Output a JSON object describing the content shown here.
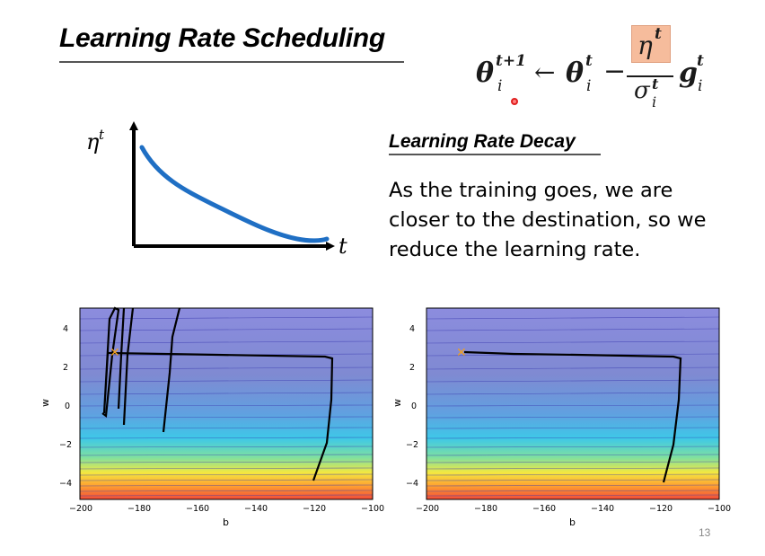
{
  "title": "Learning Rate Scheduling",
  "formula": {
    "theta": "θ",
    "arrow": "←",
    "minus": "−",
    "eta": "η",
    "sigma": "σ",
    "g": "g",
    "sup_t1": "t+1",
    "sup_t": "t",
    "sub_i": "i"
  },
  "decay_plot": {
    "y_label": "η",
    "y_label_sup": "t",
    "x_label": "t"
  },
  "subtitle": "Learning Rate Decay",
  "description_lines": [
    "As the training goes, we are",
    "closer to the destination, so we",
    "reduce the learning rate."
  ],
  "plots": [
    {
      "xlabel": "b",
      "ylabel": "w",
      "xticks": [
        "−200",
        "−180",
        "−160",
        "−140",
        "−120",
        "−100"
      ],
      "yticks": [
        "−4",
        "−2",
        "0",
        "2",
        "4"
      ]
    },
    {
      "xlabel": "b",
      "ylabel": "w",
      "xticks": [
        "−200",
        "−180",
        "−160",
        "−140",
        "−120",
        "−100"
      ],
      "yticks": [
        "−4",
        "−2",
        "0",
        "2",
        "4"
      ]
    }
  ],
  "page_number": "13",
  "colors": {
    "curve": "#1f6fc4",
    "eta_highlight": "#f6bc9c",
    "optimum_marker": "#f0a020"
  }
}
